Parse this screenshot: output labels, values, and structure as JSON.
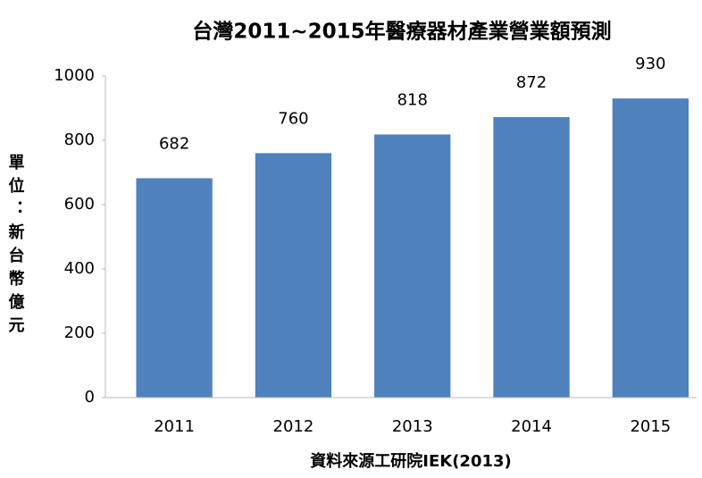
{
  "chart_data": {
    "type": "bar",
    "title": "台灣2011~2015年醫療器材產業營業額預測",
    "y_label": "單位：新台幣億元",
    "x_label": "資料來源工研院IEK(2013)",
    "categories": [
      "2011",
      "2012",
      "2013",
      "2014",
      "2015"
    ],
    "values": [
      682,
      760,
      818,
      872,
      930
    ],
    "color": "#4f81bd",
    "ylim": [
      0,
      1000
    ],
    "yticks": [
      0,
      200,
      400,
      600,
      800,
      1000
    ],
    "grid": false,
    "data_labels": true
  }
}
